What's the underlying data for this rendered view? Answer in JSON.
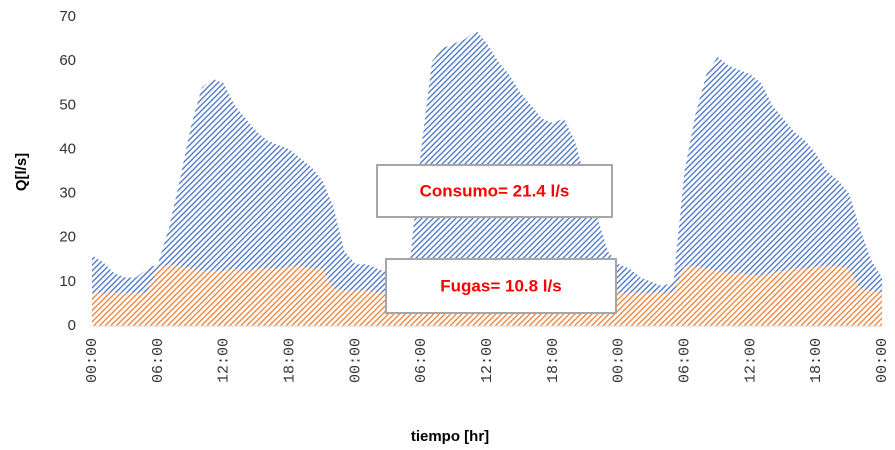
{
  "chart_data": {
    "type": "stacked_area",
    "xlabel": "tiempo [hr]",
    "ylabel": "Q[l/s]",
    "categories": [
      "00:00",
      null,
      null,
      null,
      null,
      null,
      "06:00",
      null,
      null,
      null,
      null,
      null,
      "12:00",
      null,
      null,
      null,
      null,
      null,
      "18:00",
      null,
      null,
      null,
      null,
      null,
      "00:00",
      null,
      null,
      null,
      null,
      null,
      "06:00",
      null,
      null,
      null,
      null,
      null,
      "12:00",
      null,
      null,
      null,
      null,
      null,
      "18:00",
      null,
      null,
      null,
      null,
      null,
      "00:00",
      null,
      null,
      null,
      null,
      null,
      "06:00",
      null,
      null,
      null,
      null,
      null,
      "12:00",
      null,
      null,
      null,
      null,
      null,
      "18:00",
      null,
      null,
      null,
      null,
      null,
      "00:00"
    ],
    "series": [
      {
        "name": "Fugas",
        "color": "#ed7d31",
        "values": [
          7.5,
          7.5,
          7.5,
          7.5,
          7.5,
          7.5,
          13,
          14,
          13.5,
          13,
          12.5,
          12.5,
          12.5,
          13,
          12.5,
          13,
          13,
          13,
          13.5,
          13.5,
          13,
          13,
          8.5,
          8,
          8,
          8,
          7.5,
          7.5,
          7.5,
          7.5,
          13,
          13,
          13,
          13,
          13,
          13,
          13,
          13,
          13,
          13,
          13,
          13,
          13,
          13,
          13,
          13,
          8,
          8,
          7.5,
          7.5,
          7.5,
          7.5,
          7.5,
          7.5,
          13.5,
          13.5,
          13,
          12.5,
          12,
          12,
          11.5,
          11.5,
          12,
          12.5,
          13,
          13,
          13.5,
          13.5,
          13.5,
          13,
          8.5,
          8,
          7.5
        ]
      },
      {
        "name": "Consumo",
        "color": "#4472c4",
        "values": [
          8.5,
          7,
          4.5,
          3.5,
          3.5,
          5.5,
          1,
          8,
          19.5,
          32,
          41.5,
          43.5,
          42.5,
          37,
          34.5,
          31,
          29,
          28,
          26.5,
          24.5,
          23,
          20,
          18.5,
          9,
          6,
          6,
          5.5,
          4.5,
          4.5,
          7.5,
          27,
          47,
          50,
          51,
          52,
          54,
          51,
          47,
          44,
          40,
          37,
          34,
          33,
          34,
          29,
          20,
          17,
          9,
          6.5,
          5.5,
          3.5,
          2.5,
          1.5,
          2.5,
          21.5,
          34.5,
          44,
          48.5,
          47,
          46,
          45.5,
          43.5,
          38,
          34.5,
          31,
          29,
          25.5,
          21.5,
          19.5,
          17,
          13.5,
          7,
          3.5
        ]
      }
    ],
    "annotations": [
      {
        "text": "Consumo= 21.4 l/s",
        "color": "#ff0000"
      },
      {
        "text": "Fugas= 10.8 l/s",
        "color": "#ff0000"
      }
    ],
    "ylim": [
      0,
      70
    ],
    "yticks": [
      0,
      10,
      20,
      30,
      40,
      50,
      60,
      70
    ],
    "grid": false
  }
}
